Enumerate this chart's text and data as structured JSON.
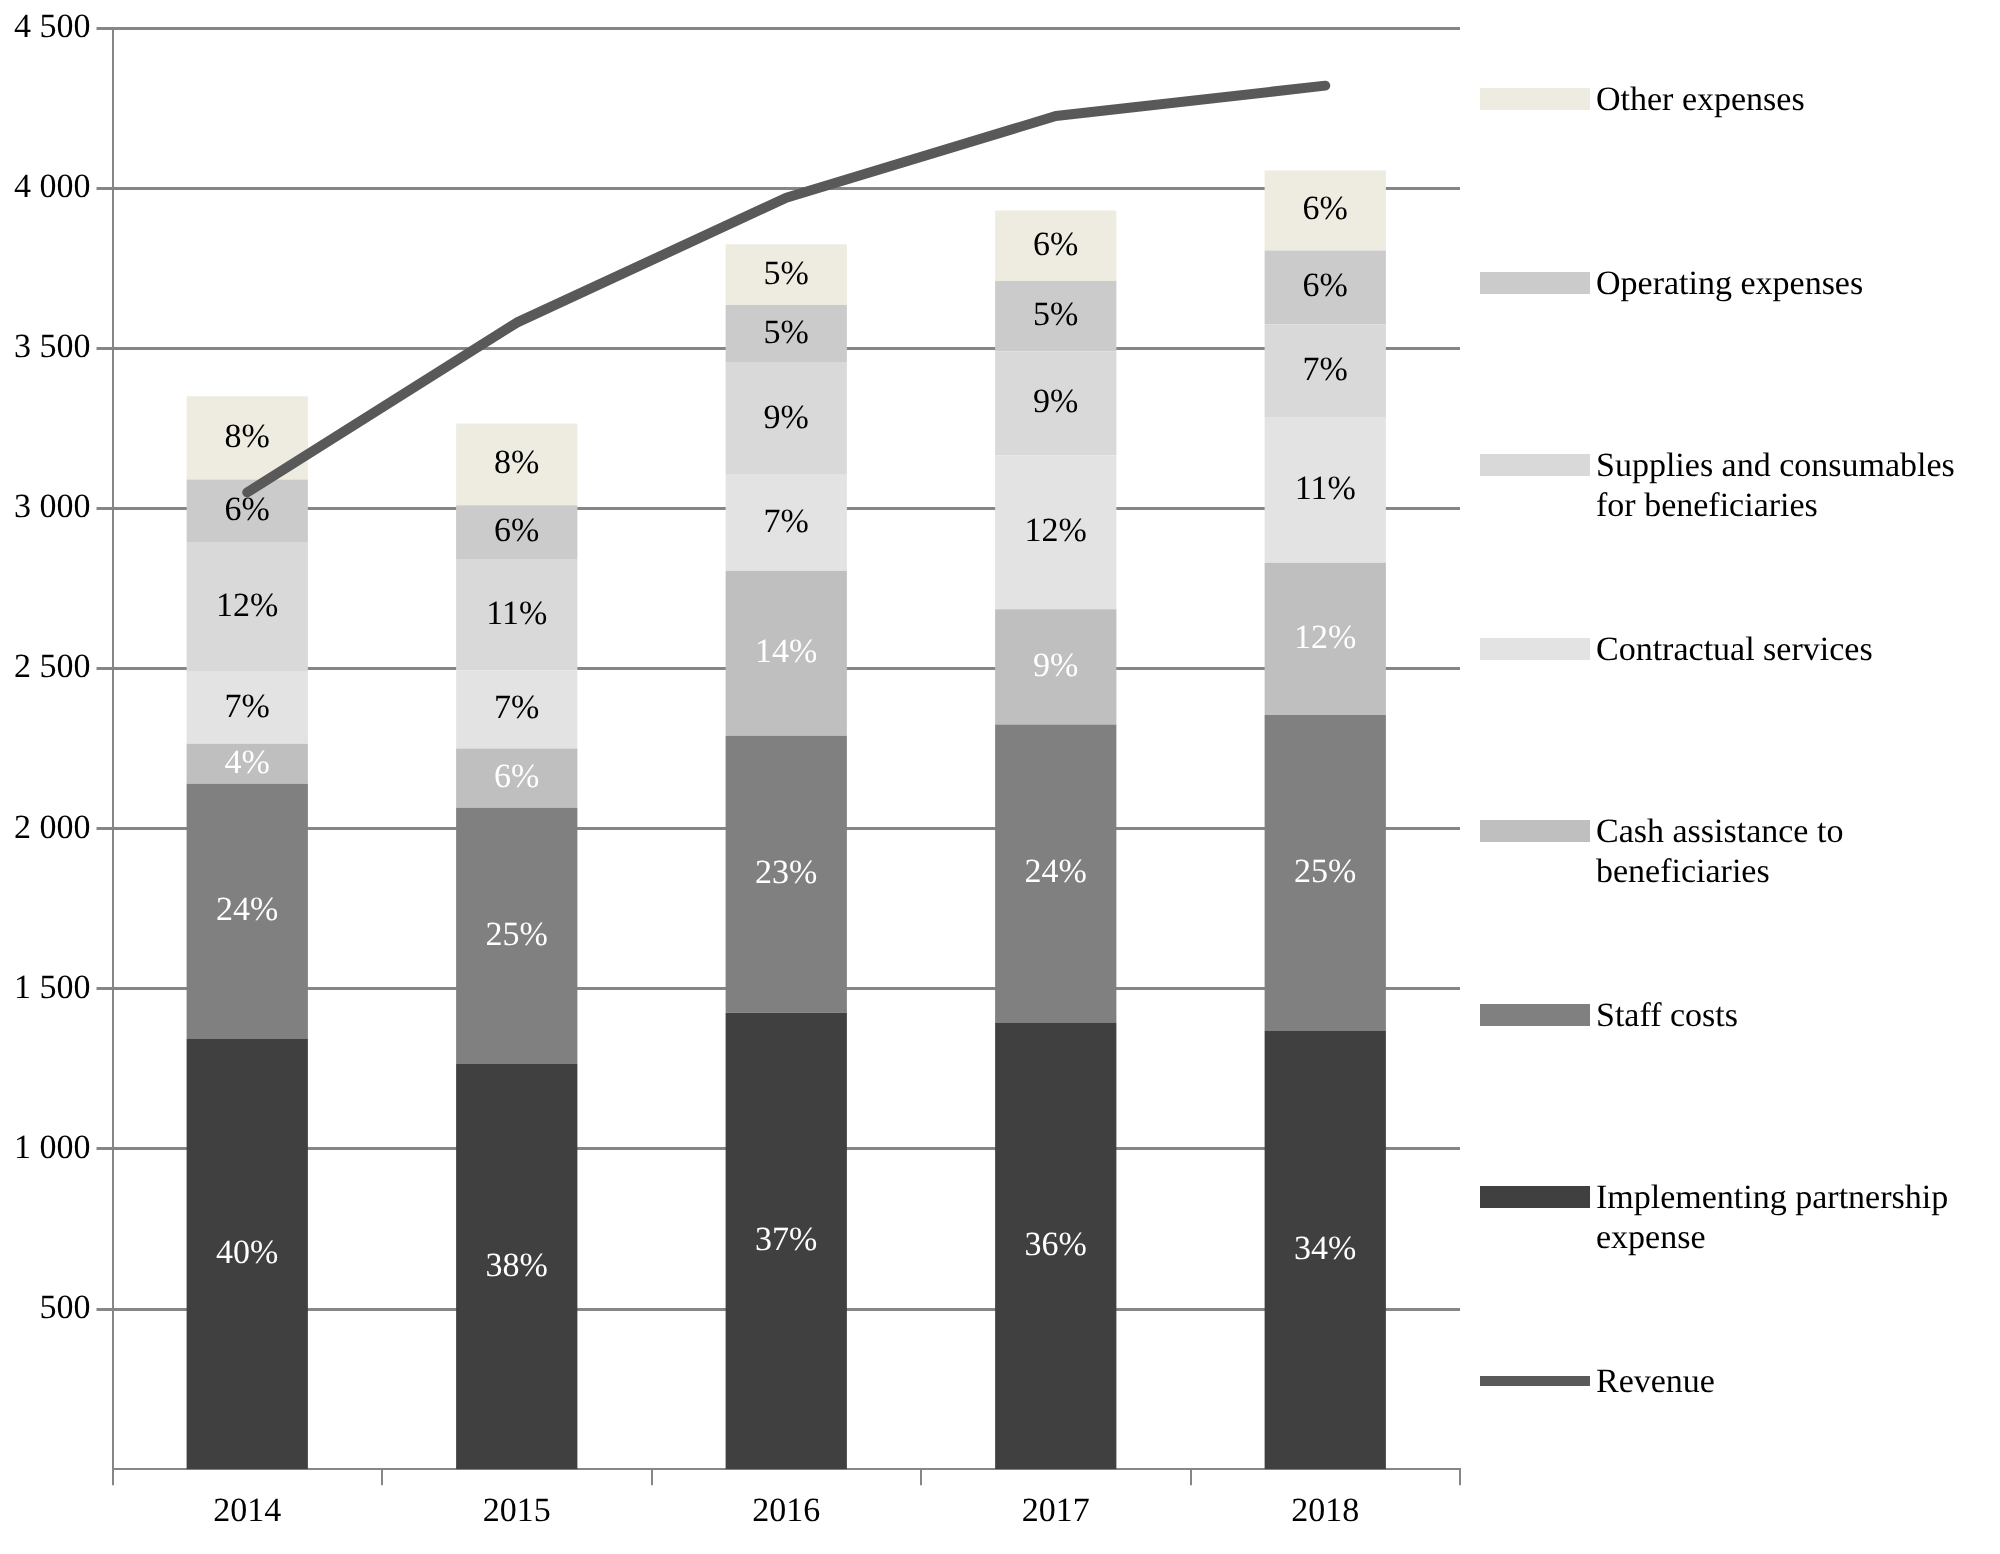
{
  "chart_data": {
    "type": "bar",
    "stacked": true,
    "categories": [
      "2014",
      "2015",
      "2016",
      "2017",
      "2018"
    ],
    "series": [
      {
        "name": "Implementing partnership expense",
        "color": "#404040",
        "values": [
          1345,
          1265,
          1425,
          1395,
          1370
        ]
      },
      {
        "name": "Staff costs",
        "color": "#808080",
        "values": [
          795,
          800,
          865,
          930,
          985
        ]
      },
      {
        "name": "Cash assistance to beneficiaries",
        "color": "#bfbfbf",
        "values": [
          125,
          185,
          515,
          360,
          475
        ]
      },
      {
        "name": "Contractual services",
        "color": "#e3e3e3",
        "values": [
          225,
          245,
          300,
          480,
          455
        ]
      },
      {
        "name": "Supplies and consumables for beneficiaries",
        "color": "#d9d9d9",
        "values": [
          405,
          345,
          350,
          325,
          290
        ]
      },
      {
        "name": "Operating expenses",
        "color": "#cbcbcb",
        "values": [
          195,
          170,
          180,
          220,
          230
        ]
      },
      {
        "name": "Other expenses",
        "color": "#eeece1",
        "values": [
          260,
          255,
          190,
          220,
          250
        ]
      },
      {
        "name": "Revenue",
        "type": "line",
        "color": "#595959",
        "values": [
          3050,
          3580,
          3970,
          4225,
          4320
        ]
      }
    ],
    "annotations": [
      "40%",
      "24%",
      "4%",
      "7%",
      "12%",
      "6%",
      "8%",
      "38%",
      "25%",
      "6%",
      "7%",
      "11%",
      "6%",
      "8%",
      "37%",
      "23%",
      "14%",
      "7%",
      "9%",
      "5%",
      "5%",
      "36%",
      "24%",
      "9%",
      "12%",
      "9%",
      "5%",
      "6%",
      "34%",
      "25%",
      "12%",
      "11%",
      "7%",
      "6%",
      "6%"
    ],
    "ylim": [
      0,
      4500
    ],
    "yticks": [
      {
        "value": 500,
        "label": "500"
      },
      {
        "value": 1000,
        "label": "1 000"
      },
      {
        "value": 1500,
        "label": "1 500"
      },
      {
        "value": 2000,
        "label": "2 000"
      },
      {
        "value": 2500,
        "label": "2 500"
      },
      {
        "value": 3000,
        "label": "3 000"
      },
      {
        "value": 3500,
        "label": "3 500"
      },
      {
        "value": 4000,
        "label": "4 000"
      },
      {
        "value": 4500,
        "label": "4 500"
      }
    ],
    "grid": "y",
    "legend": "right",
    "marker": "none"
  }
}
